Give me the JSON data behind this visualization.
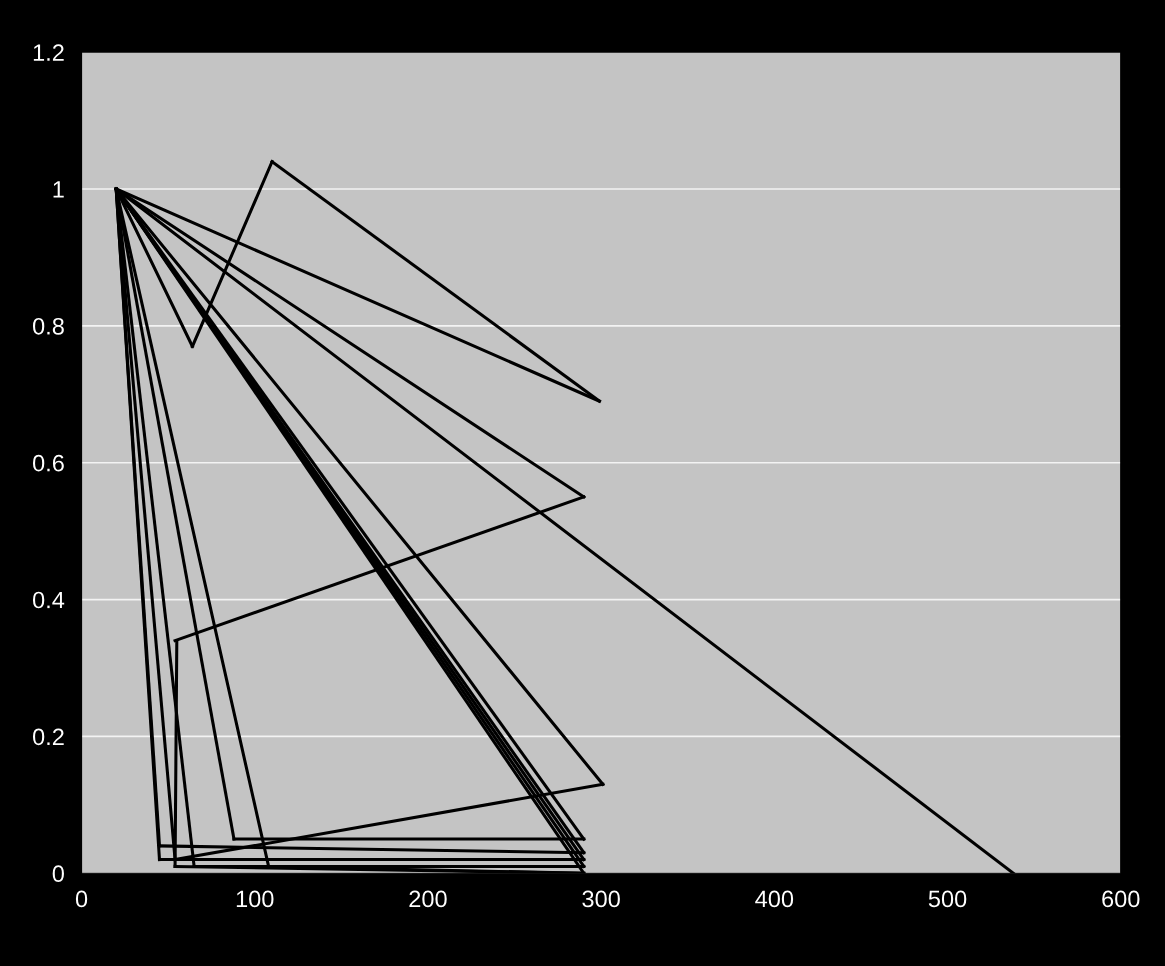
{
  "chart_data": {
    "type": "line",
    "xlim": [
      0,
      600
    ],
    "ylim": [
      0,
      1.2
    ],
    "xticks": [
      0,
      100,
      200,
      300,
      400,
      500,
      600
    ],
    "yticks": [
      0,
      0.2,
      0.4,
      0.6,
      0.8,
      1,
      1.2
    ],
    "grid": "y",
    "marker": "none",
    "line_style": "solid",
    "series": [
      {
        "color": "#000000",
        "x": [
          20,
          64
        ],
        "values": [
          1,
          0.77
        ]
      },
      {
        "color": "#000000",
        "x": [
          64,
          110
        ],
        "values": [
          0.77,
          1.04
        ]
      },
      {
        "color": "#000000",
        "x": [
          110,
          299
        ],
        "values": [
          1.04,
          0.69
        ]
      },
      {
        "color": "#000000",
        "x": [
          20,
          299
        ],
        "values": [
          1,
          0.69
        ]
      },
      {
        "color": "#000000",
        "x": [
          20,
          290
        ],
        "values": [
          1,
          0.55
        ]
      },
      {
        "color": "#000000",
        "x": [
          54,
          290
        ],
        "values": [
          0.34,
          0.55
        ]
      },
      {
        "color": "#000000",
        "x": [
          54,
          55
        ],
        "values": [
          0.01,
          0.34
        ]
      },
      {
        "color": "#000000",
        "x": [
          54,
          290
        ],
        "values": [
          0.01,
          0
        ]
      },
      {
        "color": "#000000",
        "x": [
          20,
          538
        ],
        "values": [
          1,
          0
        ]
      },
      {
        "color": "#000000",
        "x": [
          20,
          301
        ],
        "values": [
          1,
          0.13
        ]
      },
      {
        "color": "#000000",
        "x": [
          54,
          301
        ],
        "values": [
          0.02,
          0.13
        ]
      },
      {
        "color": "#000000",
        "x": [
          20,
          54
        ],
        "values": [
          1,
          0.02
        ]
      },
      {
        "color": "#000000",
        "x": [
          20,
          290
        ],
        "values": [
          1,
          0.05
        ]
      },
      {
        "color": "#000000",
        "x": [
          88,
          290
        ],
        "values": [
          0.05,
          0.05
        ]
      },
      {
        "color": "#000000",
        "x": [
          20,
          88
        ],
        "values": [
          1,
          0.05
        ]
      },
      {
        "color": "#000000",
        "x": [
          20,
          290
        ],
        "values": [
          1,
          0.03
        ]
      },
      {
        "color": "#000000",
        "x": [
          45,
          290
        ],
        "values": [
          0.04,
          0.03
        ]
      },
      {
        "color": "#000000",
        "x": [
          20,
          45
        ],
        "values": [
          1,
          0.04
        ]
      },
      {
        "color": "#000000",
        "x": [
          20,
          290
        ],
        "values": [
          1,
          0.02
        ]
      },
      {
        "color": "#000000",
        "x": [
          45,
          290
        ],
        "values": [
          0.02,
          0.02
        ]
      },
      {
        "color": "#000000",
        "x": [
          20,
          45
        ],
        "values": [
          1,
          0.02
        ]
      },
      {
        "color": "#000000",
        "x": [
          20,
          290
        ],
        "values": [
          1,
          0.01
        ]
      },
      {
        "color": "#000000",
        "x": [
          65,
          290
        ],
        "values": [
          0.01,
          0.01
        ]
      },
      {
        "color": "#000000",
        "x": [
          20,
          65
        ],
        "values": [
          1,
          0.01
        ]
      },
      {
        "color": "#000000",
        "x": [
          20,
          290
        ],
        "values": [
          1,
          0
        ]
      },
      {
        "color": "#000000",
        "x": [
          108,
          290
        ],
        "values": [
          0.01,
          0
        ]
      },
      {
        "color": "#000000",
        "x": [
          20,
          108
        ],
        "values": [
          1,
          0.01
        ]
      }
    ]
  }
}
